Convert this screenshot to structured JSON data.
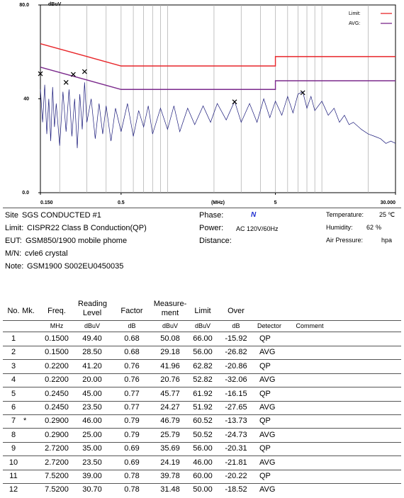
{
  "chart_data": {
    "type": "line",
    "y_label": "dBuV",
    "x_label": "(MHz)",
    "xlim": [
      0.15,
      30
    ],
    "ylim": [
      0,
      80
    ],
    "log_x": true,
    "xticks": [
      {
        "value": 0.15,
        "label": "0.150"
      },
      0.5,
      5,
      {
        "value": 30,
        "label": "30.000"
      }
    ],
    "yticks": [
      {
        "value": 0,
        "label": "0.0"
      },
      40,
      {
        "value": 80,
        "label": "80.0"
      }
    ],
    "x_grid": [
      0.2,
      0.3,
      0.4,
      0.5,
      0.6,
      0.7,
      0.8,
      0.9,
      1,
      2,
      3,
      4,
      5,
      6,
      7,
      8,
      9,
      10,
      20
    ],
    "legend": "top-right",
    "series": [
      {
        "name": "Limit:",
        "color": "#e8262a",
        "x": [
          0.15,
          0.5,
          5,
          5,
          30
        ],
        "values": [
          63.5,
          54,
          54,
          58,
          58
        ]
      },
      {
        "name": "AVG:",
        "color": "#7b2a8c",
        "x": [
          0.15,
          0.5,
          5,
          5,
          30
        ],
        "values": [
          53.5,
          44,
          44,
          47.7,
          47.7
        ]
      },
      {
        "color": "#1a1a7a",
        "x": [
          0.15,
          0.155,
          0.16,
          0.165,
          0.17,
          0.175,
          0.18,
          0.185,
          0.19,
          0.2,
          0.21,
          0.22,
          0.23,
          0.24,
          0.25,
          0.26,
          0.27,
          0.28,
          0.29,
          0.3,
          0.32,
          0.34,
          0.36,
          0.38,
          0.4,
          0.43,
          0.46,
          0.5,
          0.55,
          0.6,
          0.65,
          0.7,
          0.75,
          0.8,
          0.9,
          1.0,
          1.1,
          1.2,
          1.35,
          1.5,
          1.7,
          1.9,
          2.1,
          2.4,
          2.72,
          3.0,
          3.4,
          3.8,
          4.2,
          4.6,
          5.0,
          5.5,
          6.0,
          6.5,
          7.0,
          7.52,
          8.0,
          8.5,
          9.0,
          10,
          11,
          12,
          13,
          14,
          15,
          16,
          18,
          20,
          22,
          24,
          26,
          28,
          30
        ],
        "values": [
          44,
          30,
          46,
          25,
          40,
          22,
          45,
          28,
          38,
          20,
          43,
          26,
          44,
          24,
          40,
          19,
          42,
          27,
          47,
          30,
          40,
          23,
          38,
          25,
          37,
          22,
          36,
          26,
          38,
          24,
          35,
          28,
          37,
          25,
          36,
          27,
          37,
          26,
          36,
          29,
          37,
          30,
          38,
          31,
          39,
          30,
          38,
          30,
          40,
          32,
          39,
          33,
          41,
          34,
          42,
          43,
          36,
          41,
          35,
          39,
          33,
          36,
          30,
          33,
          29,
          30,
          27,
          25,
          24,
          23,
          21,
          22,
          21
        ]
      },
      {
        "type": "scatter",
        "color": "#000000",
        "x": [
          0.15,
          0.22,
          0.245,
          0.29,
          2.72,
          7.52
        ],
        "values": [
          50.7,
          47,
          50.4,
          51.6,
          38.7,
          42.6
        ]
      }
    ]
  },
  "info": {
    "left": [
      {
        "label": "Site",
        "value": "SGS CONDUCTED #1"
      },
      {
        "label": "Limit:",
        "value": "CISPR22 Class B Conduction(QP)"
      },
      {
        "label": "EUT:",
        "value": "GSM850/1900 mobile phome"
      },
      {
        "label": "M/N:",
        "value": "cvle6 crystal"
      },
      {
        "label": "Note:",
        "value": "GSM1900 S002EU0450035"
      }
    ],
    "middle": [
      {
        "label": "Phase:",
        "value": "N"
      },
      {
        "label": "Power:",
        "value": "AC 120V/60Hz"
      },
      {
        "label": "Distance:"
      }
    ],
    "right": [
      {
        "label": "Temperature:",
        "value": "25",
        "unit": "℃"
      },
      {
        "label": "Humidity:",
        "value": "62",
        "unit": "%"
      },
      {
        "label": "Air Pressure:",
        "unit": "hpa"
      }
    ]
  },
  "table": {
    "header": [
      "No.",
      "Mk.",
      "Freq.",
      "Reading Level",
      "Factor",
      "Measure-ment",
      "Limit",
      "Over"
    ],
    "units": [
      "MHz",
      "dBuV",
      "dB",
      "dBuV",
      "dBuV",
      "dB",
      "Detector",
      "Comment"
    ],
    "rows": [
      [
        "1",
        null,
        "0.1500",
        "49.40",
        "0.68",
        "50.08",
        "66.00",
        "-15.92",
        "QP"
      ],
      [
        "2",
        null,
        "0.1500",
        "28.50",
        "0.68",
        "29.18",
        "56.00",
        "-26.82",
        "AVG"
      ],
      [
        "3",
        null,
        "0.2200",
        "41.20",
        "0.76",
        "41.96",
        "62.82",
        "-20.86",
        "QP"
      ],
      [
        "4",
        null,
        "0.2200",
        "20.00",
        "0.76",
        "20.76",
        "52.82",
        "-32.06",
        "AVG"
      ],
      [
        "5",
        null,
        "0.2450",
        "45.00",
        "0.77",
        "45.77",
        "61.92",
        "-16.15",
        "QP"
      ],
      [
        "6",
        null,
        "0.2450",
        "23.50",
        "0.77",
        "24.27",
        "51.92",
        "-27.65",
        "AVG"
      ],
      [
        "7",
        "*",
        "0.2900",
        "46.00",
        "0.79",
        "46.79",
        "60.52",
        "-13.73",
        "QP"
      ],
      [
        "8",
        null,
        "0.2900",
        "25.00",
        "0.79",
        "25.79",
        "50.52",
        "-24.73",
        "AVG"
      ],
      [
        "9",
        null,
        "2.7200",
        "35.00",
        "0.69",
        "35.69",
        "56.00",
        "-20.31",
        "QP"
      ],
      [
        "10",
        null,
        "2.7200",
        "23.50",
        "0.69",
        "24.19",
        "46.00",
        "-21.81",
        "AVG"
      ],
      [
        "11",
        null,
        "7.5200",
        "39.00",
        "0.78",
        "39.78",
        "60.00",
        "-20.22",
        "QP"
      ],
      [
        "12",
        null,
        "7.5200",
        "30.70",
        "0.78",
        "31.48",
        "50.00",
        "-18.52",
        "AVG"
      ]
    ]
  }
}
